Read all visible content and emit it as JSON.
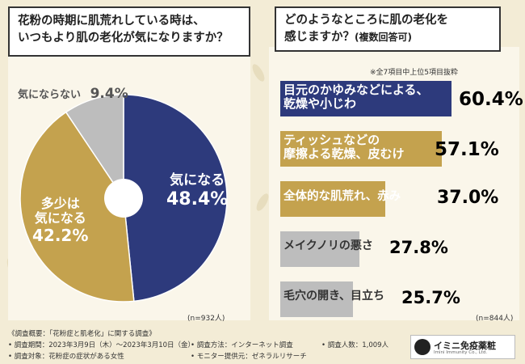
{
  "colors": {
    "navy": "#2d3a7c",
    "gold": "#c4a24e",
    "gray": "#bdbdbd",
    "background": "#f3ecd6"
  },
  "question1": {
    "line1": "花粉の時期に肌荒れしている時は、",
    "line2": "いつもより肌の老化が気になりますか？"
  },
  "question2": {
    "line1": "どのようなところに肌の老化を",
    "line2_main": "感じますか？",
    "line2_sub": "(複数回答可)"
  },
  "note_top5": "※全7項目中上位5項目抜粋",
  "chart_data": [
    {
      "type": "pie",
      "title": "花粉の時期に肌荒れしている時は、いつもより肌の老化が気になりますか？",
      "sample": "(n=932人)",
      "slices": [
        {
          "label": "気になる",
          "value": 48.4,
          "display": "48.4%"
        },
        {
          "label": "多少は気になる",
          "label_line1": "多少は",
          "label_line2": "気になる",
          "value": 42.2,
          "display": "42.2%"
        },
        {
          "label": "気にならない",
          "value": 9.4,
          "display": "9.4%"
        }
      ]
    },
    {
      "type": "bar",
      "orientation": "horizontal",
      "title": "どのようなところに肌の老化を感じますか？(複数回答可)",
      "sample": "(n=844人)",
      "bars": [
        {
          "label_line1": "目元のかゆみなどによる、",
          "label_line2": "乾燥や小じわ",
          "value": 60.4,
          "display": "60.4%"
        },
        {
          "label_line1": "ティッシュなどの",
          "label_line2": "摩擦よる乾燥、皮むけ",
          "value": 57.1,
          "display": "57.1%"
        },
        {
          "label_line1": "全体的な肌荒れ、赤み",
          "value": 37.0,
          "display": "37.0%"
        },
        {
          "label_line1": "メイクノリの悪さ",
          "value": 27.8,
          "display": "27.8%"
        },
        {
          "label_line1": "毛穴の開き、目立ち",
          "value": 25.7,
          "display": "25.7%"
        }
      ]
    }
  ],
  "footer": {
    "overview": "《調査概要：「花粉症と肌老化」に関する調査》",
    "period": "• 調査期間：2023年3月9日（木）～2023年3月10日（金）",
    "method": "• 調査方法：インターネット調査",
    "respondents": "• 調査人数：1,009人",
    "target": "• 調査対象：花粉症の症状がある女性",
    "provider": "• モニター提供元：ゼネラルリサーチ"
  },
  "logo": {
    "name": "イミニ免疫薬粧",
    "sub": "Imini Immunity Co., Ltd."
  }
}
